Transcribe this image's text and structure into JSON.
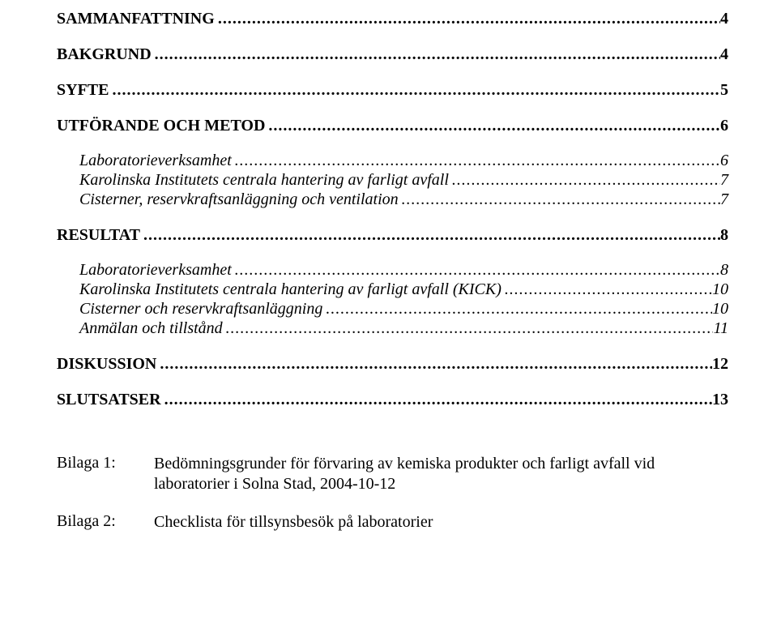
{
  "toc": [
    {
      "label": "SAMMANFATTNING",
      "page": "4",
      "style": "bold",
      "extraClass": "first"
    },
    {
      "label": "BAKGRUND",
      "page": "4",
      "style": "bold"
    },
    {
      "label": "SYFTE",
      "page": "5",
      "style": "bold"
    },
    {
      "label": "UTFÖRANDE OCH METOD",
      "page": "6",
      "style": "bold"
    },
    {
      "label": "Laboratorieverksamhet",
      "page": "6",
      "style": "italic"
    },
    {
      "label": "Karolinska Institutets centrala hantering av farligt avfall",
      "page": "7",
      "style": "italic"
    },
    {
      "label": "Cisterner, reservkraftsanläggning och ventilation",
      "page": "7",
      "style": "italic"
    },
    {
      "label": "RESULTAT",
      "page": "8",
      "style": "bold"
    },
    {
      "label": "Laboratorieverksamhet",
      "page": "8",
      "style": "italic"
    },
    {
      "label": "Karolinska Institutets centrala hantering av farligt avfall (KICK)",
      "page": "10",
      "style": "italic"
    },
    {
      "label": "Cisterner och reservkraftsanläggning",
      "page": "10",
      "style": "italic"
    },
    {
      "label": "Anmälan och tillstånd",
      "page": "11",
      "style": "italic"
    },
    {
      "label": "DISKUSSION",
      "page": "12",
      "style": "bold"
    },
    {
      "label": "SLUTSATSER",
      "page": "13",
      "style": "bold"
    }
  ],
  "dots": "........................................................................................................................................................................................................................................................",
  "attachments": [
    {
      "label": "Bilaga 1:",
      "text": "Bedömningsgrunder för förvaring av kemiska produkter och farligt avfall vid laboratorier i Solna Stad, 2004-10-12"
    },
    {
      "label": "Bilaga 2:",
      "text": "Checklista för tillsynsbesök på laboratorier"
    }
  ]
}
